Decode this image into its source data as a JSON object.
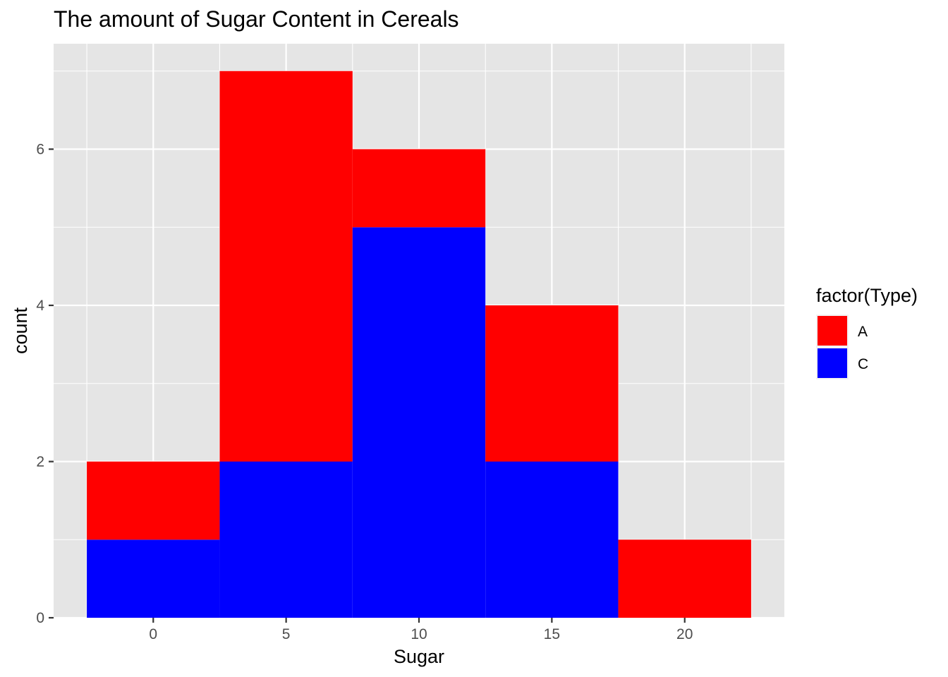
{
  "chart_data": {
    "type": "bar",
    "stacked": true,
    "histogram": true,
    "title": "The amount of Sugar Content in Cereals",
    "xlabel": "Sugar",
    "ylabel": "count",
    "bin_width": 5,
    "bin_centers": [
      0,
      5,
      10,
      15,
      20
    ],
    "xlim": [
      -3.75,
      23.75
    ],
    "ylim": [
      0,
      7.35
    ],
    "x_ticks": [
      "0",
      "5",
      "10",
      "15",
      "20"
    ],
    "y_ticks": [
      "0",
      "2",
      "4",
      "6"
    ],
    "grid": true,
    "legend": {
      "title": "factor(Type)",
      "position": "right"
    },
    "series": [
      {
        "name": "A",
        "color": "#FF0000",
        "values": [
          1,
          5,
          1,
          2,
          1
        ]
      },
      {
        "name": "C",
        "color": "#0000FF",
        "values": [
          1,
          2,
          5,
          2,
          0
        ]
      }
    ],
    "panel_background": "#E5E5E5",
    "gridline_color": "#FFFFFF"
  }
}
